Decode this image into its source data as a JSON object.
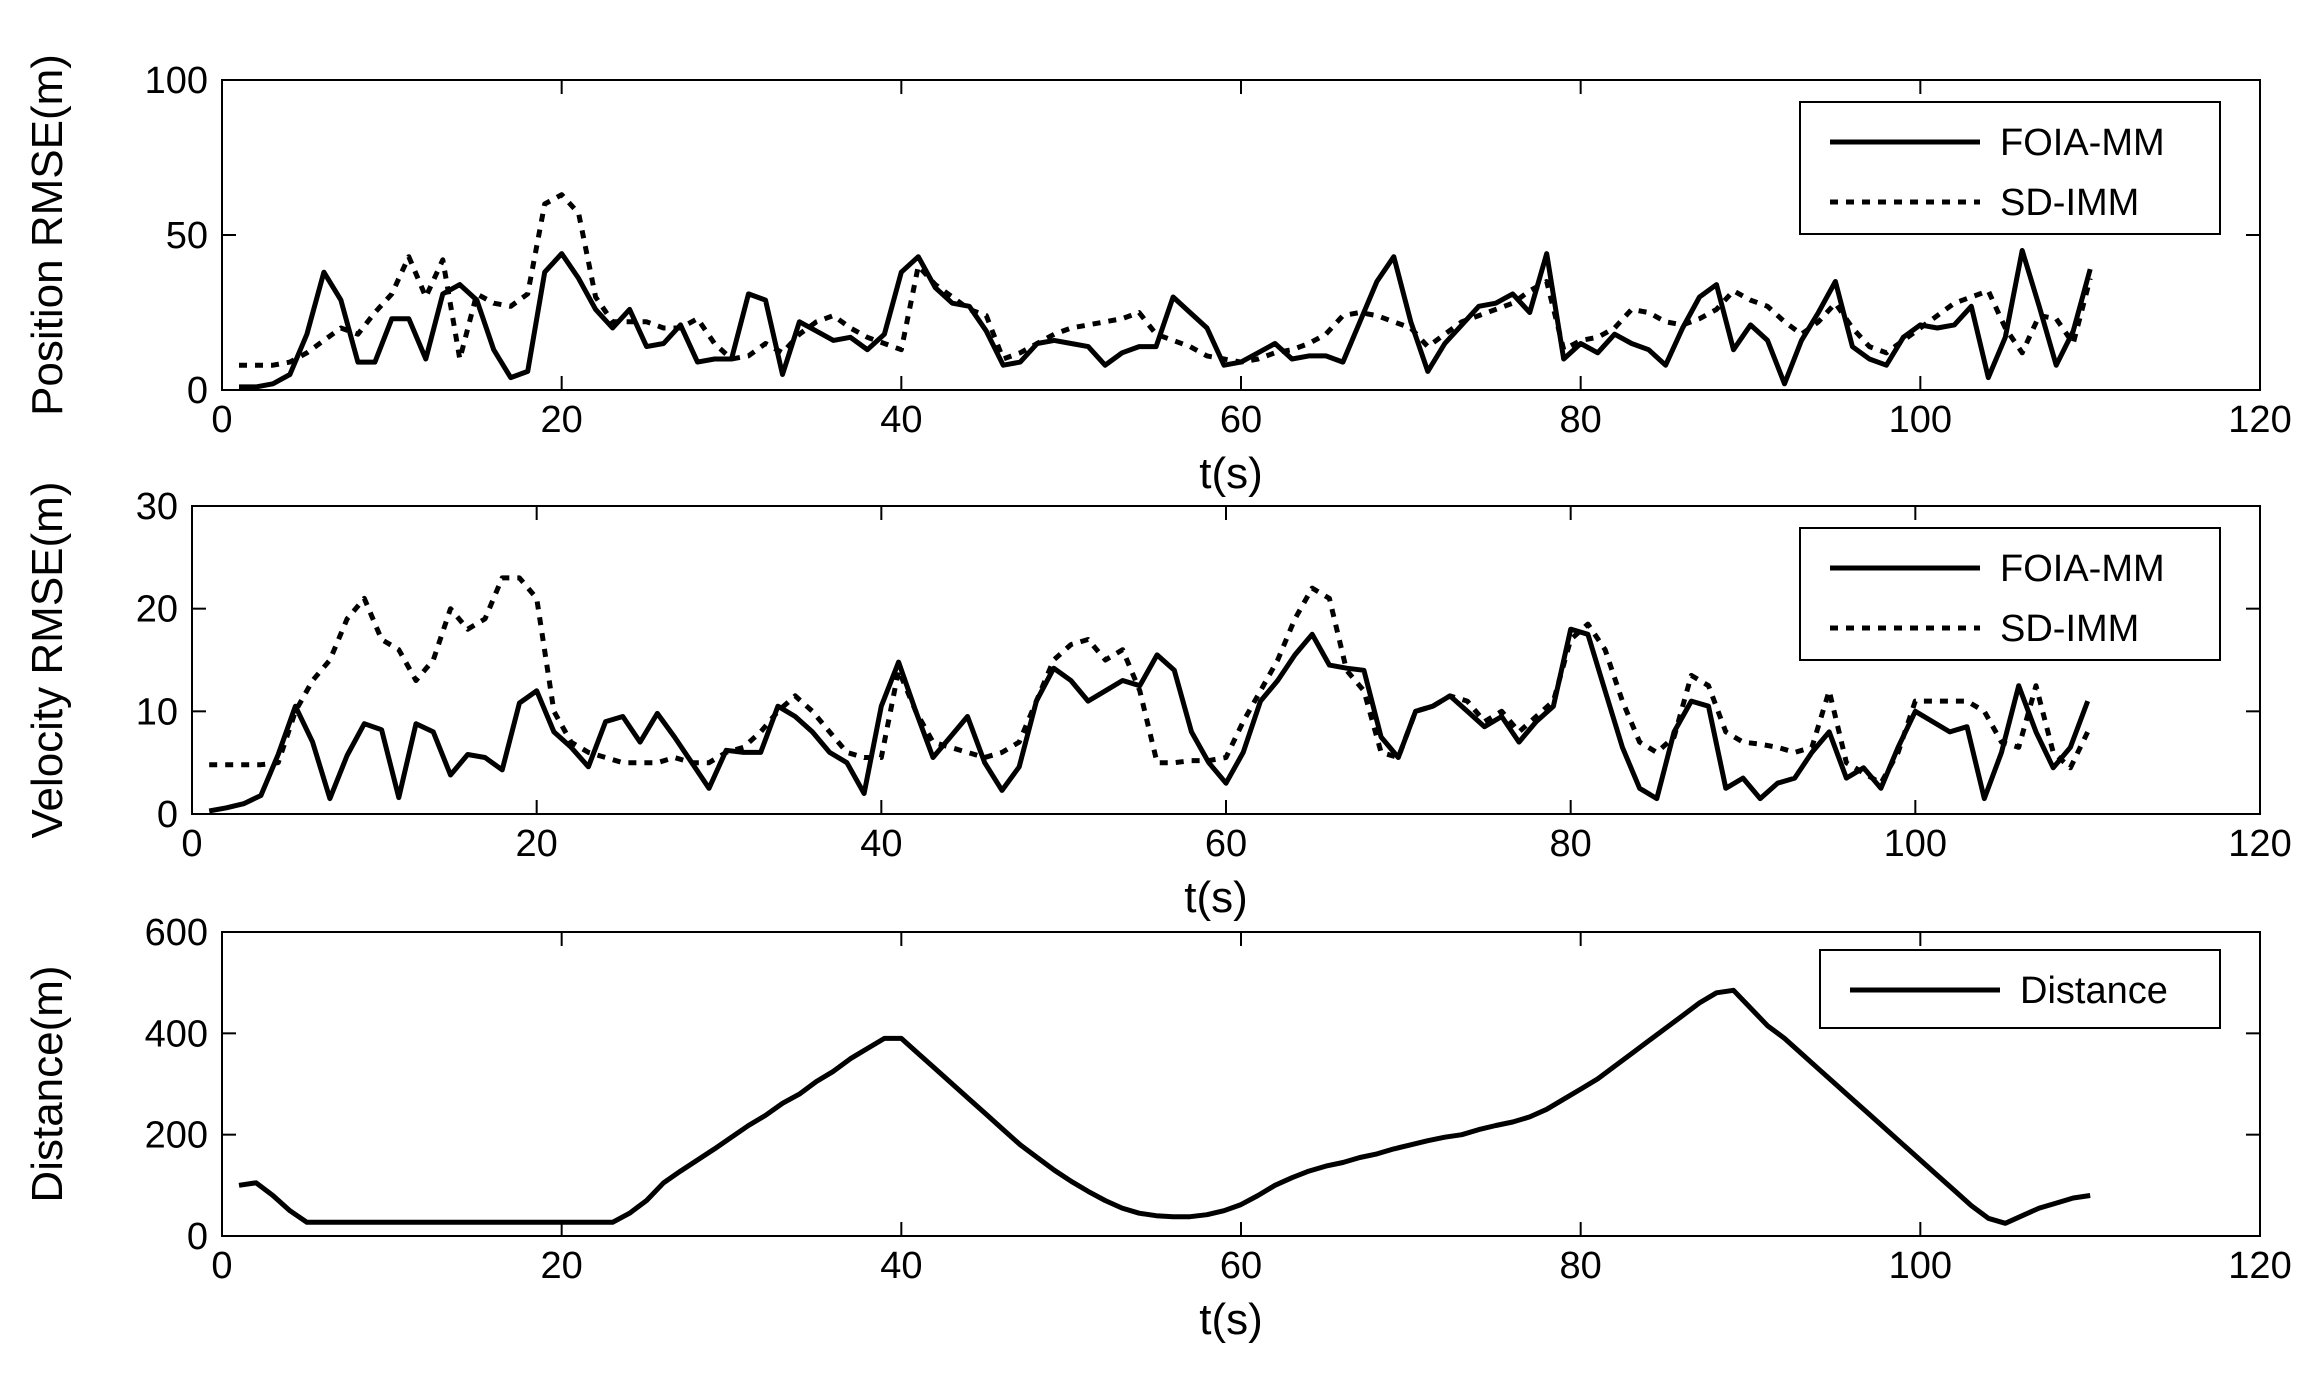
{
  "chart_data": [
    {
      "type": "line",
      "xlabel": "t(s)",
      "ylabel": "Position RMSE(m)",
      "xlim": [
        0,
        120
      ],
      "ylim": [
        0,
        100
      ],
      "xticks": [
        "0",
        "20",
        "40",
        "60",
        "80",
        "100",
        "120"
      ],
      "yticks": [
        "0",
        "50",
        "100"
      ],
      "legend_position": "top-right",
      "grid": false,
      "series": [
        {
          "name": "FOIA-MM",
          "style": "solid",
          "x": [
            1,
            2,
            3,
            4,
            5,
            6,
            7,
            8,
            9,
            10,
            11,
            12,
            13,
            14,
            15,
            16,
            17,
            18,
            19,
            20,
            21,
            22,
            23,
            24,
            25,
            26,
            27,
            28,
            29,
            30,
            31,
            32,
            33,
            34,
            35,
            36,
            37,
            38,
            39,
            40,
            41,
            42,
            43,
            44,
            45,
            46,
            47,
            48,
            49,
            50,
            51,
            52,
            53,
            54,
            55,
            56,
            57,
            58,
            59,
            60,
            61,
            62,
            63,
            64,
            65,
            66,
            67,
            68,
            69,
            70,
            71,
            72,
            73,
            74,
            75,
            76,
            77,
            78,
            79,
            80,
            81,
            82,
            83,
            84,
            85,
            86,
            87,
            88,
            89,
            90,
            91,
            92,
            93,
            94,
            95,
            96,
            97,
            98,
            99,
            100,
            101,
            102,
            103,
            104,
            105,
            106,
            107,
            108,
            109,
            110
          ],
          "y": [
            1,
            1,
            2,
            5,
            18,
            38,
            29,
            9,
            9,
            23,
            23,
            10,
            31,
            34,
            29,
            13,
            4,
            6,
            38,
            44,
            36,
            26,
            20,
            26,
            14,
            15,
            21,
            9,
            10,
            10,
            31,
            29,
            5,
            22,
            19,
            16,
            17,
            13,
            18,
            38,
            43,
            33,
            28,
            27,
            19,
            8,
            9,
            15,
            16,
            15,
            14,
            8,
            12,
            14,
            14,
            30,
            25,
            20,
            8,
            9,
            12,
            15,
            10,
            11,
            11,
            9,
            22,
            35,
            43,
            22,
            6,
            15,
            21,
            27,
            28,
            31,
            25,
            44,
            10,
            15,
            12,
            18,
            15,
            13,
            8,
            20,
            30,
            34,
            13,
            21,
            16,
            2,
            16,
            25,
            35,
            14,
            10,
            8,
            17,
            21,
            20,
            21,
            27,
            4,
            17,
            45,
            27,
            8,
            19,
            39
          ]
        },
        {
          "name": "SD-IMM",
          "style": "dotted",
          "x": [
            1,
            2,
            3,
            4,
            5,
            6,
            7,
            8,
            9,
            10,
            11,
            12,
            13,
            14,
            15,
            16,
            17,
            18,
            19,
            20,
            21,
            22,
            23,
            24,
            25,
            26,
            27,
            28,
            29,
            30,
            31,
            32,
            33,
            34,
            35,
            36,
            37,
            38,
            39,
            40,
            41,
            42,
            43,
            44,
            45,
            46,
            47,
            48,
            49,
            50,
            51,
            52,
            53,
            54,
            55,
            56,
            57,
            58,
            59,
            60,
            61,
            62,
            63,
            64,
            65,
            66,
            67,
            68,
            69,
            70,
            71,
            72,
            73,
            74,
            75,
            76,
            77,
            78,
            79,
            80,
            81,
            82,
            83,
            84,
            85,
            86,
            87,
            88,
            89,
            90,
            91,
            92,
            93,
            94,
            95,
            96,
            97,
            98,
            99,
            100,
            101,
            102,
            103,
            104,
            105,
            106,
            107,
            108,
            109,
            110
          ],
          "y": [
            8,
            8,
            8,
            9,
            12,
            16,
            20,
            18,
            25,
            31,
            43,
            30,
            42,
            10,
            31,
            28,
            27,
            31,
            60,
            63,
            57,
            30,
            22,
            22,
            22,
            20,
            20,
            23,
            15,
            10,
            11,
            15,
            12,
            18,
            22,
            24,
            20,
            17,
            15,
            13,
            40,
            34,
            30,
            26,
            24,
            10,
            12,
            15,
            18,
            20,
            21,
            22,
            23,
            25,
            18,
            16,
            14,
            11,
            10,
            9,
            10,
            12,
            13,
            15,
            18,
            24,
            25,
            24,
            22,
            20,
            14,
            18,
            22,
            24,
            26,
            28,
            32,
            35,
            13,
            16,
            17,
            20,
            26,
            25,
            22,
            21,
            23,
            26,
            32,
            29,
            27,
            22,
            18,
            22,
            28,
            20,
            14,
            12,
            16,
            20,
            24,
            28,
            30,
            32,
            20,
            12,
            24,
            23,
            15,
            36
          ]
        }
      ]
    },
    {
      "type": "line",
      "xlabel": "t(s)",
      "ylabel": "Velocity RMSE(m)",
      "xlim": [
        0,
        120
      ],
      "ylim": [
        0,
        30
      ],
      "xticks": [
        "0",
        "20",
        "40",
        "60",
        "80",
        "100",
        "120"
      ],
      "yticks": [
        "0",
        "10",
        "20",
        "30"
      ],
      "legend_position": "top-right",
      "grid": false,
      "series": [
        {
          "name": "FOIA-MM",
          "style": "solid",
          "x": [
            1,
            2,
            3,
            4,
            5,
            6,
            7,
            8,
            9,
            10,
            11,
            12,
            13,
            14,
            15,
            16,
            17,
            18,
            19,
            20,
            21,
            22,
            23,
            24,
            25,
            26,
            27,
            28,
            29,
            30,
            31,
            32,
            33,
            34,
            35,
            36,
            37,
            38,
            39,
            40,
            41,
            42,
            43,
            44,
            45,
            46,
            47,
            48,
            49,
            50,
            51,
            52,
            53,
            54,
            55,
            56,
            57,
            58,
            59,
            60,
            61,
            62,
            63,
            64,
            65,
            66,
            67,
            68,
            69,
            70,
            71,
            72,
            73,
            74,
            75,
            76,
            77,
            78,
            79,
            80,
            81,
            82,
            83,
            84,
            85,
            86,
            87,
            88,
            89,
            90,
            91,
            92,
            93,
            94,
            95,
            96,
            97,
            98,
            99,
            100,
            101,
            102,
            103,
            104,
            105,
            106,
            107,
            108,
            109,
            110
          ],
          "y": [
            0.3,
            0.6,
            1,
            1.8,
            5.8,
            10.5,
            7,
            1.5,
            5.7,
            8.8,
            8.2,
            1.6,
            8.8,
            8,
            3.8,
            5.8,
            5.5,
            4.3,
            10.8,
            12,
            8,
            6.5,
            4.6,
            9,
            9.5,
            7,
            9.8,
            7.5,
            5,
            2.5,
            6.2,
            6,
            6,
            10.5,
            9.5,
            8,
            6,
            5,
            2,
            10.5,
            14.8,
            10,
            5.5,
            7.5,
            9.5,
            5,
            2.3,
            4.6,
            11,
            14.2,
            13,
            11,
            12,
            13,
            12.5,
            15.5,
            14,
            8,
            5,
            3,
            6,
            11,
            13,
            15.5,
            17.5,
            14.5,
            14.2,
            14,
            7.5,
            5.5,
            10,
            10.5,
            11.5,
            10,
            8.5,
            9.5,
            7,
            9,
            10.5,
            18,
            17.5,
            12,
            6.5,
            2.5,
            1.5,
            8,
            11,
            10.5,
            2.5,
            3.5,
            1.5,
            3,
            3.5,
            6,
            8,
            3.5,
            4.5,
            2.5,
            6.5,
            10,
            9,
            8,
            8.5,
            1.5,
            6,
            12.5,
            8,
            4.5,
            6.5,
            11
          ]
        },
        {
          "name": "SD-IMM",
          "style": "dotted",
          "x": [
            1,
            2,
            3,
            4,
            5,
            6,
            7,
            8,
            9,
            10,
            11,
            12,
            13,
            14,
            15,
            16,
            17,
            18,
            19,
            20,
            21,
            22,
            23,
            24,
            25,
            26,
            27,
            28,
            29,
            30,
            31,
            32,
            33,
            34,
            35,
            36,
            37,
            38,
            39,
            40,
            41,
            42,
            43,
            44,
            45,
            46,
            47,
            48,
            49,
            50,
            51,
            52,
            53,
            54,
            55,
            56,
            57,
            58,
            59,
            60,
            61,
            62,
            63,
            64,
            65,
            66,
            67,
            68,
            69,
            70,
            71,
            72,
            73,
            74,
            75,
            76,
            77,
            78,
            79,
            80,
            81,
            82,
            83,
            84,
            85,
            86,
            87,
            88,
            89,
            90,
            91,
            92,
            93,
            94,
            95,
            96,
            97,
            98,
            99,
            100,
            101,
            102,
            103,
            104,
            105,
            106,
            107,
            108,
            109,
            110
          ],
          "y": [
            4.8,
            4.8,
            4.8,
            4.8,
            5,
            10,
            13,
            15,
            19,
            21,
            17,
            16,
            13,
            15,
            20,
            18,
            19,
            23,
            23,
            21,
            10,
            7,
            6,
            5.5,
            5,
            5,
            5,
            5.5,
            5,
            5,
            6,
            6.5,
            8,
            10,
            11.5,
            10,
            8,
            6,
            5.5,
            5.5,
            14,
            10,
            7,
            6.5,
            6,
            5.5,
            6,
            7,
            11,
            15,
            16.5,
            17,
            15,
            16,
            12,
            5,
            5,
            5.2,
            5.2,
            5.5,
            9,
            12,
            15,
            19,
            22,
            21,
            14,
            12,
            6,
            5.5,
            10,
            10.5,
            11.5,
            11,
            9,
            10,
            8,
            9.5,
            11,
            17,
            18.5,
            16,
            11,
            7,
            6,
            7.5,
            13.5,
            12.5,
            8,
            7,
            6.8,
            6.5,
            6,
            6.5,
            12,
            5,
            4,
            3,
            6,
            11,
            11,
            11,
            11,
            10,
            7,
            6.5,
            12.5,
            6,
            4.5,
            8
          ]
        }
      ]
    },
    {
      "type": "line",
      "xlabel": "t(s)",
      "ylabel": "Distance(m)",
      "xlim": [
        0,
        120
      ],
      "ylim": [
        0,
        600
      ],
      "xticks": [
        "0",
        "20",
        "40",
        "60",
        "80",
        "100",
        "120"
      ],
      "yticks": [
        "0",
        "200",
        "400",
        "600"
      ],
      "legend_position": "top-right",
      "grid": false,
      "series": [
        {
          "name": "Distance",
          "style": "solid",
          "x": [
            1,
            2,
            3,
            4,
            5,
            6,
            7,
            8,
            9,
            10,
            11,
            12,
            13,
            14,
            15,
            16,
            17,
            18,
            19,
            20,
            21,
            22,
            23,
            24,
            25,
            26,
            27,
            28,
            29,
            30,
            31,
            32,
            33,
            34,
            35,
            36,
            37,
            38,
            39,
            40,
            41,
            42,
            43,
            44,
            45,
            46,
            47,
            48,
            49,
            50,
            51,
            52,
            53,
            54,
            55,
            56,
            57,
            58,
            59,
            60,
            61,
            62,
            63,
            64,
            65,
            66,
            67,
            68,
            69,
            70,
            71,
            72,
            73,
            74,
            75,
            76,
            77,
            78,
            79,
            80,
            81,
            82,
            83,
            84,
            85,
            86,
            87,
            88,
            89,
            90,
            91,
            92,
            93,
            94,
            95,
            96,
            97,
            98,
            99,
            100,
            101,
            102,
            103,
            104,
            105,
            106,
            107,
            108,
            109,
            110
          ],
          "y": [
            100,
            105,
            80,
            50,
            27,
            27,
            27,
            27,
            27,
            27,
            27,
            27,
            27,
            27,
            27,
            27,
            27,
            27,
            27,
            27,
            27,
            27,
            27,
            45,
            70,
            105,
            128,
            150,
            172,
            195,
            218,
            238,
            262,
            280,
            305,
            325,
            350,
            370,
            390,
            390,
            360,
            330,
            300,
            270,
            240,
            210,
            180,
            155,
            130,
            108,
            88,
            70,
            55,
            45,
            40,
            38,
            38,
            42,
            50,
            62,
            80,
            100,
            115,
            128,
            138,
            145,
            155,
            162,
            172,
            180,
            188,
            195,
            200,
            210,
            218,
            225,
            235,
            250,
            270,
            290,
            310,
            335,
            360,
            385,
            410,
            435,
            460,
            480,
            485,
            450,
            415,
            390,
            360,
            330,
            300,
            270,
            240,
            210,
            180,
            150,
            120,
            90,
            60,
            35,
            25,
            40,
            55,
            65,
            75,
            80
          ]
        }
      ]
    }
  ]
}
